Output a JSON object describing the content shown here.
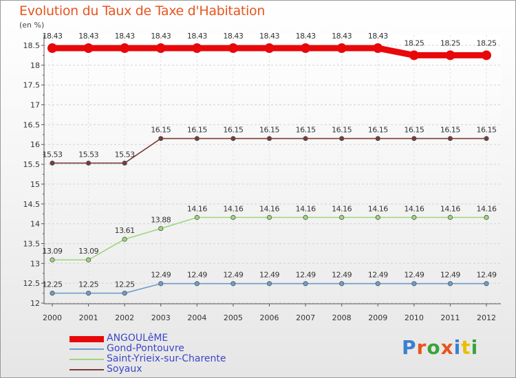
{
  "title": "Evolution du Taux de Taxe d'Habitation",
  "unit_label": "(en %)",
  "logo_text": "Proxiti",
  "chart_data": {
    "type": "line",
    "title": "Evolution du Taux de Taxe d'Habitation",
    "ylabel": "(en %)",
    "xlabel": "",
    "x": [
      "2000",
      "2001",
      "2002",
      "2003",
      "2004",
      "2005",
      "2006",
      "2007",
      "2008",
      "2009",
      "2010",
      "2011",
      "2012"
    ],
    "ylim": [
      12,
      18.5
    ],
    "yticks": [
      "12",
      "12.5",
      "13",
      "13.5",
      "14",
      "14.5",
      "15",
      "15.5",
      "16",
      "16.5",
      "17",
      "17.5",
      "18",
      "18.5"
    ],
    "grid": "horizontal",
    "legend_position": "bottom-left",
    "series": [
      {
        "name": "ANGOULêME",
        "color": "#e8080a",
        "values": [
          18.43,
          18.43,
          18.43,
          18.43,
          18.43,
          18.43,
          18.43,
          18.43,
          18.43,
          18.43,
          18.25,
          18.25,
          18.25
        ],
        "labels": [
          "18.43",
          "18.43",
          "18.43",
          "18.43",
          "18.43",
          "18.43",
          "18.43",
          "18.43",
          "18.43",
          "18.43",
          "18.25",
          "18.25",
          "18.25"
        ]
      },
      {
        "name": "Gond-Pontouvre",
        "color": "#6e9ccc",
        "values": [
          12.25,
          12.25,
          12.25,
          12.49,
          12.49,
          12.49,
          12.49,
          12.49,
          12.49,
          12.49,
          12.49,
          12.49,
          12.49
        ],
        "labels": [
          "12.25",
          "12.25",
          "12.25",
          "12.49",
          "12.49",
          "12.49",
          "12.49",
          "12.49",
          "12.49",
          "12.49",
          "12.49",
          "12.49",
          "12.49"
        ]
      },
      {
        "name": "Saint-Yrieix-sur-Charente",
        "color": "#9cd67a",
        "values": [
          13.09,
          13.09,
          13.61,
          13.88,
          14.16,
          14.16,
          14.16,
          14.16,
          14.16,
          14.16,
          14.16,
          14.16,
          14.16
        ],
        "labels": [
          "13.09",
          "13.09",
          "13.61",
          "13.88",
          "14.16",
          "14.16",
          "14.16",
          "14.16",
          "14.16",
          "14.16",
          "14.16",
          "14.16",
          "14.16"
        ]
      },
      {
        "name": "Soyaux",
        "color": "#7a3a3a",
        "values": [
          15.53,
          15.53,
          15.53,
          16.15,
          16.15,
          16.15,
          16.15,
          16.15,
          16.15,
          16.15,
          16.15,
          16.15,
          16.15
        ],
        "labels": [
          "15.53",
          "15.53",
          "15.53",
          "16.15",
          "16.15",
          "16.15",
          "16.15",
          "16.15",
          "16.15",
          "16.15",
          "16.15",
          "16.15",
          "16.15"
        ]
      }
    ]
  }
}
